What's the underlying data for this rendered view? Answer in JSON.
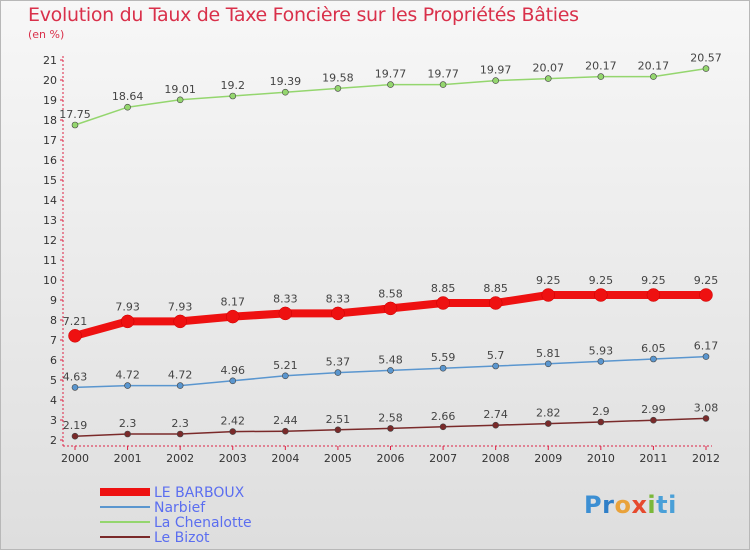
{
  "chart_data": {
    "type": "line",
    "title": "Evolution du Taux de Taxe Foncière sur les Propriétés Bâties",
    "ylabel": "(en %)",
    "xlabel": "",
    "categories": [
      "2000",
      "2001",
      "2002",
      "2003",
      "2004",
      "2005",
      "2006",
      "2007",
      "2008",
      "2009",
      "2010",
      "2011",
      "2012"
    ],
    "ylim": [
      2,
      21
    ],
    "yticks": [
      2,
      3,
      4,
      5,
      6,
      7,
      8,
      9,
      10,
      11,
      12,
      13,
      14,
      15,
      16,
      17,
      18,
      19,
      20,
      21
    ],
    "series": [
      {
        "name": "LE BARBOUX",
        "color": "#ee1111",
        "values": [
          7.21,
          7.93,
          7.93,
          8.17,
          8.33,
          8.33,
          8.58,
          8.85,
          8.85,
          9.25,
          9.25,
          9.25,
          9.25
        ],
        "labels": [
          "7.21",
          "7.93",
          "7.93",
          "8.17",
          "8.33",
          "8.33",
          "8.58",
          "8.85",
          "8.85",
          "9.25",
          "9.25",
          "9.25",
          "9.25"
        ]
      },
      {
        "name": "Narbief",
        "color": "#5a96cf",
        "values": [
          4.63,
          4.72,
          4.72,
          4.96,
          5.21,
          5.37,
          5.48,
          5.59,
          5.7,
          5.81,
          5.93,
          6.05,
          6.17
        ],
        "labels": [
          "4.63",
          "4.72",
          "4.72",
          "4.96",
          "5.21",
          "5.37",
          "5.48",
          "5.59",
          "5.7",
          "5.81",
          "5.93",
          "6.05",
          "6.17"
        ]
      },
      {
        "name": "La Chenalotte",
        "color": "#94d66e",
        "values": [
          17.75,
          18.64,
          19.01,
          19.2,
          19.39,
          19.58,
          19.77,
          19.77,
          19.97,
          20.07,
          20.17,
          20.17,
          20.57
        ],
        "labels": [
          "17.75",
          "18.64",
          "19.01",
          "19.2",
          "19.39",
          "19.58",
          "19.77",
          "19.77",
          "19.97",
          "20.07",
          "20.17",
          "20.17",
          "20.57"
        ]
      },
      {
        "name": "Le Bizot",
        "color": "#7a2a2a",
        "values": [
          2.19,
          2.3,
          2.3,
          2.42,
          2.44,
          2.51,
          2.58,
          2.66,
          2.74,
          2.82,
          2.9,
          2.99,
          3.08
        ],
        "labels": [
          "2.19",
          "2.3",
          "2.3",
          "2.42",
          "2.44",
          "2.51",
          "2.58",
          "2.66",
          "2.74",
          "2.82",
          "2.9",
          "2.99",
          "3.08"
        ]
      }
    ],
    "grid": false,
    "legend": "bottom-left"
  },
  "logo": {
    "letters": [
      "P",
      "r",
      "o",
      "x",
      "i",
      "ti"
    ]
  }
}
